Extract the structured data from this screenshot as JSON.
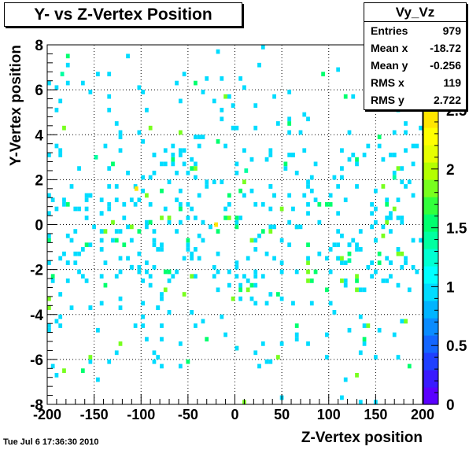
{
  "chart_data": {
    "type": "heatmap",
    "title": "Y- vs Z-Vertex Position",
    "xlabel": "Z-Vertex position",
    "ylabel": "Y-Vertex position",
    "xlim": [
      -200,
      200
    ],
    "ylim": [
      -8,
      8
    ],
    "x_ticks": [
      "-200",
      "-150",
      "-100",
      "-50",
      "0",
      "50",
      "100",
      "150",
      "200"
    ],
    "y_ticks": [
      "-8",
      "-6",
      "-4",
      "-2",
      "0",
      "2",
      "4",
      "6",
      "8"
    ],
    "z_range": [
      0,
      2.5
    ],
    "z_ticks": [
      "0",
      "0.5",
      "1",
      "1.5",
      "2",
      "2.5"
    ],
    "grid": true,
    "colormap": [
      "#5b00ff",
      "#3a1aff",
      "#2040ff",
      "#1466ff",
      "#0a8cff",
      "#00b4ff",
      "#00dcff",
      "#00ffff",
      "#00ffd2",
      "#00ffa0",
      "#00ff6e",
      "#32ff3c",
      "#78ff1e",
      "#b4ff00",
      "#e6ff00",
      "#ffff00",
      "#ffe600"
    ],
    "bin_size": [
      4,
      0.2
    ],
    "sample_bins": [
      {
        "x": -22,
        "y": -0.1,
        "value": 2.5
      },
      {
        "x": -107,
        "y": 1.5,
        "value": 2.5
      },
      {
        "x": -150,
        "y": 2.9,
        "value": 1.5
      },
      {
        "x": -186,
        "y": 6.6,
        "value": 1.5
      },
      {
        "x": 10,
        "y": 2.3,
        "value": 1.5
      },
      {
        "x": 120,
        "y": -1.7,
        "value": 1.5
      },
      {
        "x": 168,
        "y": 2.0,
        "value": 1.5
      }
    ]
  },
  "stats": {
    "name": "Vy_Vz",
    "rows": [
      {
        "label": "Entries",
        "value": "979"
      },
      {
        "label": "Mean x",
        "value": "-18.72"
      },
      {
        "label": "Mean y",
        "value": "-0.256"
      },
      {
        "label": "RMS x",
        "value": "119"
      },
      {
        "label": "RMS y",
        "value": "2.722"
      }
    ]
  },
  "footer": "Tue Jul  6 17:36:30 2010"
}
